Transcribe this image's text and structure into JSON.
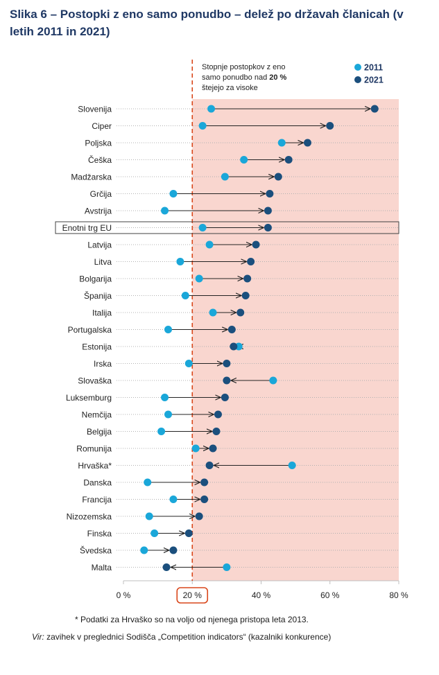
{
  "title": "Slika 6 – Postopki z eno samo ponudbo – delež po državah članicah (v letih 2011 in 2021)",
  "chart_data": {
    "type": "dumbbell",
    "title": "Slika 6 – Postopki z eno samo ponudbo – delež po državah članicah (v letih 2011 in 2021)",
    "xlabel": "",
    "ylabel": "",
    "xlim": [
      0,
      80
    ],
    "x_ticks": [
      "0 %",
      "20 %",
      "40 %",
      "60 %",
      "80 %"
    ],
    "x_tick_values": [
      0,
      20,
      40,
      60,
      80
    ],
    "threshold": 20,
    "threshold_label": "20 %",
    "annotation_lines": [
      "Stopnje postopkov z eno",
      "samo ponudbo nad 20 %",
      "štejejo za visoke"
    ],
    "highlighted_category": "Enotni trg EU",
    "legend": [
      {
        "name": "2011",
        "color": "#1aa7d9"
      },
      {
        "name": "2021",
        "color": "#1b4f7d"
      }
    ],
    "categories": [
      "Slovenija",
      "Ciper",
      "Poljska",
      "Češka",
      "Madžarska",
      "Grčija",
      "Avstrija",
      "Enotni trg EU",
      "Latvija",
      "Litva",
      "Bolgarija",
      "Španija",
      "Italija",
      "Portugalska",
      "Estonija",
      "Irska",
      "Slovaška",
      "Luksemburg",
      "Nemčija",
      "Belgija",
      "Romunija",
      "Hrvaška*",
      "Danska",
      "Francija",
      "Nizozemska",
      "Finska",
      "Švedska",
      "Malta"
    ],
    "series": [
      {
        "name": "2011",
        "values": [
          25.5,
          23,
          46,
          35,
          29.5,
          14.5,
          12,
          23,
          25,
          16.5,
          22,
          18,
          26,
          13,
          33.5,
          19,
          43.5,
          12,
          13,
          11,
          21,
          49,
          7,
          14.5,
          7.5,
          9,
          6,
          30
        ]
      },
      {
        "name": "2021",
        "values": [
          73,
          60,
          53.5,
          48,
          45,
          42.5,
          42,
          42,
          38.5,
          37,
          36,
          35.5,
          34,
          31.5,
          32,
          30,
          30,
          29.5,
          27.5,
          27,
          26,
          25,
          23.5,
          23.5,
          22,
          19,
          14.5,
          12.5
        ]
      }
    ]
  },
  "footnote": "* Podatki za Hrvaško so na voljo od njenega pristopa leta 2013.",
  "source_label": "Vir:",
  "source_text": " zavihek v preglednici Sodišča „Competition indicators“ (kazalniki konkurence)"
}
